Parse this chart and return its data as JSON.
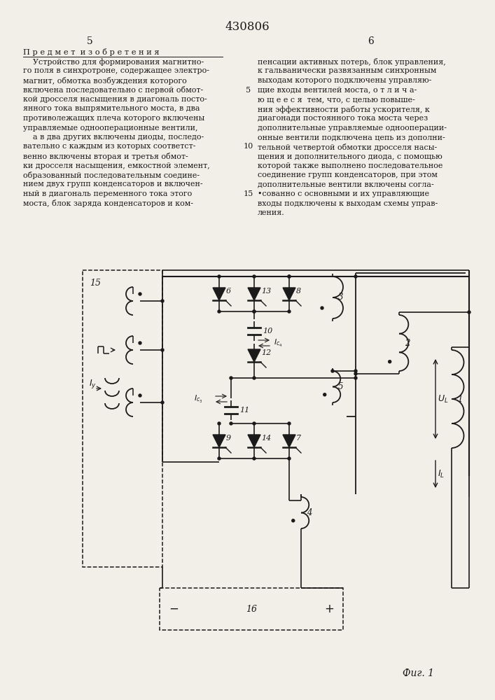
{
  "patent_number": "430806",
  "col_left_num": "5",
  "col_right_num": "6",
  "bg_color": "#f2efe9",
  "lc": "#1a1a1a",
  "tc": "#1a1a1a",
  "left_lines": [
    "    Устройство для формирования магнитно-",
    "го поля в синхротроне, содержащее электро-",
    "магнит, обмотка возбуждения которого",
    "включена последовательно с первой обмот-",
    "кой дросселя насыщения в диагональ посто-",
    "янного тока выпрямительного моста, в два",
    "противолежащих плеча которого включены",
    "управляемые однооперационные вентили,",
    "    а в два других включены диоды, последо-",
    "вательно с каждым из которых соответст-",
    "венно включены вторая и третья обмот-",
    "ки дросселя насыщения, емкостной элемент,",
    "образованный последовательным соедине-",
    "нием двух групп конденсаторов и включен-",
    "ный в диагональ переменного тока этого",
    "моста, блок заряда конденсаторов и ком-"
  ],
  "right_lines": [
    "пенсации активных потерь, блок управления,",
    "к гальванически развязанным синхронным",
    "выходам которого подключены управляю-",
    "щие входы вентилей моста, о т л и ч а-",
    "ю щ е е с я  тем, что, с целью повыше-",
    "ния эффективности работы ускорителя, к",
    "диагонади постоянного тока моста через",
    "дополнительные управляемые однооперации-",
    "онные вентили подключена цепь из дополни-",
    "тельной четвертой обмотки дросселя насы-",
    "щения и дополнительного диода, с помощью",
    "которой также выполнено последовательное",
    "соединение групп конденсаторов, при этом",
    "дополнительные вентили включены согла-",
    "•сованно с основными и их управляющие",
    "входы подключены к выходам схемы управ-",
    "ления."
  ],
  "line_num_5_row": 3,
  "line_num_10_row": 9,
  "line_num_15_row": 14
}
